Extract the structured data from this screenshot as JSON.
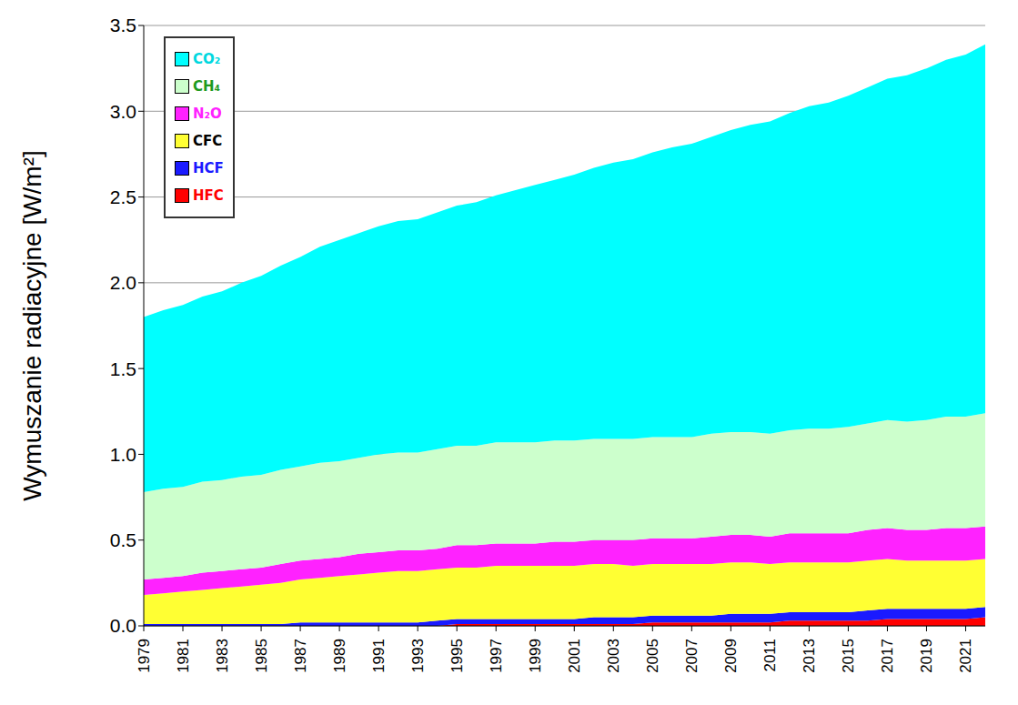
{
  "chart_data": {
    "type": "area",
    "stacked": true,
    "grid": true,
    "legend": "upper left",
    "y_label": "Wymuszanie radiacyjne [W/m²]",
    "x": [
      1979,
      1980,
      1981,
      1982,
      1983,
      1984,
      1985,
      1986,
      1987,
      1988,
      1989,
      1990,
      1991,
      1992,
      1993,
      1994,
      1995,
      1996,
      1997,
      1998,
      1999,
      2000,
      2001,
      2002,
      2003,
      2004,
      2005,
      2006,
      2007,
      2008,
      2009,
      2010,
      2011,
      2012,
      2013,
      2014,
      2015,
      2016,
      2017,
      2018,
      2019,
      2020,
      2021,
      2022
    ],
    "xlim": [
      1979,
      2022
    ],
    "xticks": [
      1979,
      1981,
      1983,
      1985,
      1987,
      1989,
      1991,
      1993,
      1995,
      1997,
      1999,
      2001,
      2003,
      2005,
      2007,
      2009,
      2011,
      2013,
      2015,
      2017,
      2019,
      2021
    ],
    "ylim": [
      0,
      3.5
    ],
    "yticks": [
      {
        "value": 0,
        "label": "0.0"
      },
      0.5,
      {
        "value": 1,
        "label": "1.0"
      },
      1.5,
      {
        "value": 2,
        "label": "2.0"
      },
      2.5,
      {
        "value": 3,
        "label": "3.0"
      },
      3.5
    ],
    "series": [
      {
        "name": "CO₂",
        "color": "#00ffff",
        "values": [
          1.02,
          1.04,
          1.06,
          1.08,
          1.1,
          1.13,
          1.16,
          1.19,
          1.22,
          1.26,
          1.29,
          1.31,
          1.33,
          1.35,
          1.36,
          1.38,
          1.4,
          1.42,
          1.44,
          1.47,
          1.5,
          1.52,
          1.55,
          1.58,
          1.61,
          1.63,
          1.66,
          1.69,
          1.71,
          1.73,
          1.76,
          1.79,
          1.82,
          1.85,
          1.88,
          1.9,
          1.93,
          1.96,
          1.99,
          2.02,
          2.05,
          2.08,
          2.11,
          2.15
        ]
      },
      {
        "name": "CH₄",
        "color": "#ccffcc",
        "values": [
          0.51,
          0.52,
          0.52,
          0.53,
          0.53,
          0.54,
          0.54,
          0.55,
          0.55,
          0.56,
          0.56,
          0.56,
          0.57,
          0.57,
          0.57,
          0.58,
          0.58,
          0.58,
          0.59,
          0.59,
          0.59,
          0.59,
          0.59,
          0.59,
          0.59,
          0.59,
          0.59,
          0.59,
          0.59,
          0.6,
          0.6,
          0.6,
          0.6,
          0.6,
          0.61,
          0.61,
          0.62,
          0.62,
          0.63,
          0.63,
          0.64,
          0.65,
          0.65,
          0.66
        ]
      },
      {
        "name": "N₂O",
        "color": "#ff22ff",
        "values": [
          0.09,
          0.09,
          0.09,
          0.1,
          0.1,
          0.1,
          0.1,
          0.11,
          0.11,
          0.11,
          0.11,
          0.12,
          0.12,
          0.12,
          0.12,
          0.12,
          0.13,
          0.13,
          0.13,
          0.13,
          0.13,
          0.14,
          0.14,
          0.14,
          0.14,
          0.15,
          0.15,
          0.15,
          0.15,
          0.16,
          0.16,
          0.16,
          0.16,
          0.17,
          0.17,
          0.17,
          0.17,
          0.18,
          0.18,
          0.18,
          0.18,
          0.19,
          0.19,
          0.19
        ]
      },
      {
        "name": "CFC",
        "color": "#ffff33",
        "values": [
          0.17,
          0.18,
          0.19,
          0.2,
          0.21,
          0.22,
          0.23,
          0.24,
          0.25,
          0.26,
          0.27,
          0.28,
          0.29,
          0.3,
          0.3,
          0.3,
          0.3,
          0.3,
          0.31,
          0.31,
          0.31,
          0.31,
          0.31,
          0.31,
          0.31,
          0.3,
          0.3,
          0.3,
          0.3,
          0.3,
          0.3,
          0.3,
          0.29,
          0.29,
          0.29,
          0.29,
          0.29,
          0.29,
          0.29,
          0.28,
          0.28,
          0.28,
          0.28,
          0.28
        ]
      },
      {
        "name": "HCF",
        "color": "#1a1aff",
        "values": [
          0.01,
          0.01,
          0.01,
          0.01,
          0.01,
          0.01,
          0.01,
          0.01,
          0.02,
          0.02,
          0.02,
          0.02,
          0.02,
          0.02,
          0.02,
          0.03,
          0.03,
          0.03,
          0.03,
          0.03,
          0.03,
          0.03,
          0.03,
          0.04,
          0.04,
          0.04,
          0.04,
          0.04,
          0.04,
          0.04,
          0.05,
          0.05,
          0.05,
          0.05,
          0.05,
          0.05,
          0.05,
          0.06,
          0.06,
          0.06,
          0.06,
          0.06,
          0.06,
          0.06
        ]
      },
      {
        "name": "HFC",
        "color": "#ff0000",
        "values": [
          0.0,
          0.0,
          0.0,
          0.0,
          0.0,
          0.0,
          0.0,
          0.0,
          0.0,
          0.0,
          0.0,
          0.0,
          0.0,
          0.0,
          0.0,
          0.0,
          0.01,
          0.01,
          0.01,
          0.01,
          0.01,
          0.01,
          0.01,
          0.01,
          0.01,
          0.01,
          0.02,
          0.02,
          0.02,
          0.02,
          0.02,
          0.02,
          0.02,
          0.03,
          0.03,
          0.03,
          0.03,
          0.03,
          0.04,
          0.04,
          0.04,
          0.04,
          0.04,
          0.05
        ]
      }
    ]
  }
}
